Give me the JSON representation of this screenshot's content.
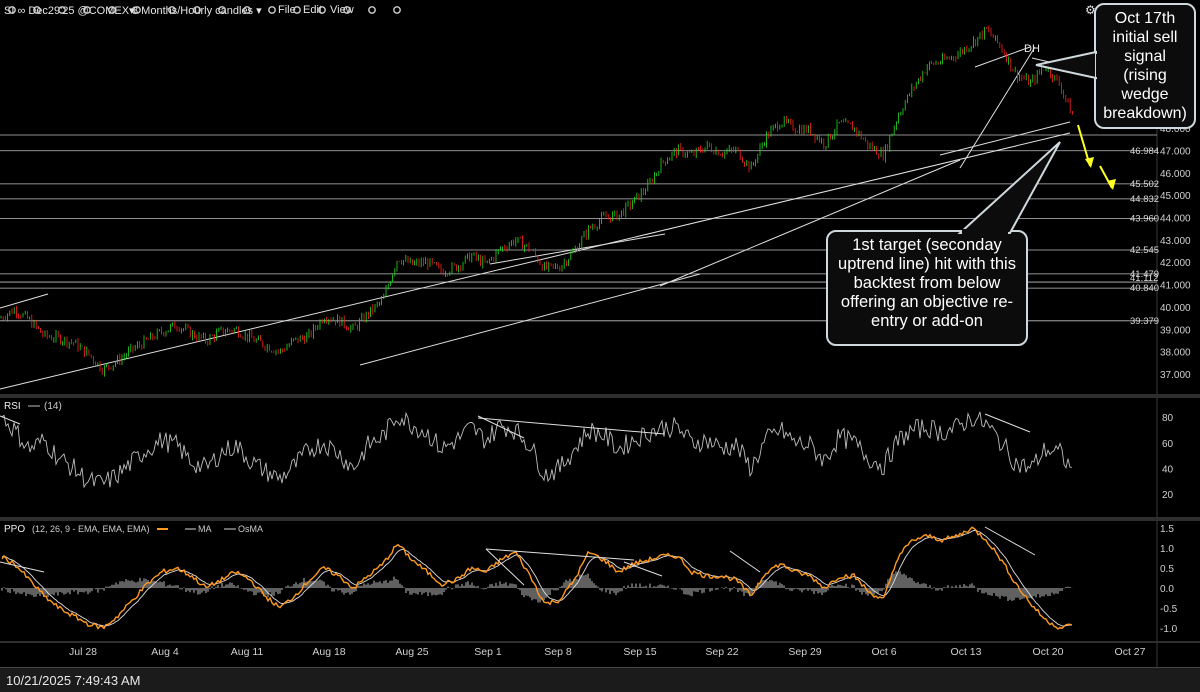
{
  "toolbar": {
    "symbol": "SI ∞ Dec29'25 @COMEX▾",
    "timeframe": "3 Months/Hourly candles ▾",
    "menu": [
      "File",
      "Edit",
      "View"
    ]
  },
  "status": {
    "datetime": "10/21/2025 7:49:43 AM"
  },
  "callouts": {
    "sell_signal": [
      "Oct 17th",
      "initial sell",
      "signal",
      "(rising",
      "wedge",
      "breakdown)"
    ],
    "target": [
      "1st target  (seconday",
      "uptrend line) hit with this",
      "backtest from below",
      "offering an objective re-",
      "entry or add-on"
    ]
  },
  "colors": {
    "up": "#22dd22",
    "down": "#ff2020",
    "rsi": "#bdbdbd",
    "ppo": "#ff9a1f",
    "ppo_ma": "#dddddd",
    "osma": "#6b6b6b",
    "arrow": "#ffff22"
  },
  "chart_data": [
    {
      "type": "candlestick",
      "title": "SI ∞ Dec29'25 @COMEX",
      "timeframe": "3 Months/Hourly candles",
      "x_tick_labels": [
        "Jul 28",
        "Aug 4",
        "Aug 11",
        "Aug 18",
        "Aug 25",
        "Sep 1",
        "Sep 8",
        "Sep 15",
        "Sep 22",
        "Sep 29",
        "Oct 6",
        "Oct 13",
        "Oct 20",
        "Oct 27"
      ],
      "y_axis_ticks": [
        37.0,
        38.0,
        39.0,
        40.0,
        41.0,
        42.0,
        43.0,
        44.0,
        45.0,
        46.0,
        47.0,
        48.0
      ],
      "y_tick_labels": [
        "37.000",
        "38.000",
        "39.000",
        "40.000",
        "41.000",
        "42.000",
        "43.000",
        "44.000",
        "45.000",
        "46.000",
        "47.000",
        "48.000"
      ],
      "horizontal_level_labels": [
        "46.984",
        "45.502",
        "44.832",
        "43.960",
        "42.545",
        "41.479",
        "41.112",
        "40.840",
        "39.379"
      ],
      "annotations": [
        "DH"
      ],
      "close_path": [
        [
          0,
          39.5
        ],
        [
          1,
          39.9
        ],
        [
          2,
          39.4
        ],
        [
          3,
          38.7
        ],
        [
          4,
          38.6
        ],
        [
          5,
          38.4
        ],
        [
          6,
          37.9
        ],
        [
          7,
          37.2
        ],
        [
          8,
          37.6
        ],
        [
          9,
          38.1
        ],
        [
          10,
          38.5
        ],
        [
          11,
          38.9
        ],
        [
          12,
          39.2
        ],
        [
          13,
          38.8
        ],
        [
          14,
          38.5
        ],
        [
          15,
          38.9
        ],
        [
          16,
          39.0
        ],
        [
          17,
          38.6
        ],
        [
          18,
          38.3
        ],
        [
          19,
          38.0
        ],
        [
          20,
          38.5
        ],
        [
          21,
          38.7
        ],
        [
          22,
          39.6
        ],
        [
          23,
          39.4
        ],
        [
          24,
          39.0
        ],
        [
          25,
          39.7
        ],
        [
          26,
          40.3
        ],
        [
          27,
          42.2
        ],
        [
          28,
          41.9
        ],
        [
          29,
          42.0
        ],
        [
          30,
          41.6
        ],
        [
          31,
          41.8
        ],
        [
          32,
          42.3
        ],
        [
          33,
          41.9
        ],
        [
          34,
          42.6
        ],
        [
          35,
          43.0
        ],
        [
          36,
          42.6
        ],
        [
          37,
          41.7
        ],
        [
          38,
          41.8
        ],
        [
          39,
          42.5
        ],
        [
          40,
          43.5
        ],
        [
          41,
          44.0
        ],
        [
          42,
          44.1
        ],
        [
          43,
          44.7
        ],
        [
          44,
          45.4
        ],
        [
          45,
          46.5
        ],
        [
          46,
          47.0
        ],
        [
          47,
          46.8
        ],
        [
          48,
          47.2
        ],
        [
          49,
          46.9
        ],
        [
          50,
          47.0
        ],
        [
          51,
          46.2
        ],
        [
          52,
          47.6
        ],
        [
          53,
          48.3
        ],
        [
          54,
          48.0
        ],
        [
          55,
          47.9
        ],
        [
          56,
          47.3
        ],
        [
          57,
          48.2
        ],
        [
          58,
          48.0
        ],
        [
          59,
          47.2
        ],
        [
          60,
          46.8
        ],
        [
          61,
          48.6
        ],
        [
          62,
          49.8
        ],
        [
          63,
          50.8
        ],
        [
          64,
          51.0
        ],
        [
          65,
          51.3
        ],
        [
          66,
          51.8
        ],
        [
          67,
          52.4
        ],
        [
          68,
          51.6
        ],
        [
          69,
          50.4
        ],
        [
          70,
          50.0
        ],
        [
          71,
          50.8
        ],
        [
          72,
          49.9
        ],
        [
          73,
          48.3
        ]
      ],
      "projected_path_arrows": "yellow arrows pointing down from last price"
    },
    {
      "type": "line",
      "title": "RSI",
      "legend": [
        "(14)"
      ],
      "y_tick_labels": [
        "20",
        "40",
        "60",
        "80"
      ],
      "ylim": [
        10,
        95
      ],
      "values": [
        82,
        70,
        55,
        62,
        48,
        40,
        30,
        28,
        35,
        45,
        55,
        62,
        58,
        45,
        40,
        52,
        58,
        46,
        38,
        32,
        42,
        55,
        60,
        52,
        40,
        58,
        65,
        82,
        74,
        68,
        55,
        62,
        72,
        62,
        74,
        70,
        58,
        35,
        40,
        55,
        70,
        66,
        55,
        62,
        68,
        72,
        72,
        60,
        62,
        56,
        58,
        40,
        62,
        70,
        60,
        58,
        46,
        65,
        60,
        48,
        42,
        62,
        70,
        72,
        68,
        72,
        80,
        74,
        60,
        44,
        40,
        55,
        52,
        35
      ]
    },
    {
      "type": "line",
      "title": "PPO",
      "legend": [
        "(12, 26, 9 - EMA, EMA, EMA)",
        "MA",
        "OsMA"
      ],
      "y_tick_labels": [
        "-1.0",
        "-0.5",
        "0.0",
        "0.5",
        "1.0",
        "1.5"
      ],
      "ylim": [
        -1.3,
        1.8
      ],
      "values": [
        0.8,
        0.6,
        0.2,
        -0.2,
        -0.5,
        -0.7,
        -0.9,
        -1.0,
        -0.7,
        -0.3,
        0.1,
        0.4,
        0.5,
        0.3,
        0.0,
        0.2,
        0.4,
        0.2,
        -0.2,
        -0.5,
        -0.2,
        0.2,
        0.5,
        0.3,
        0.0,
        0.3,
        0.6,
        1.1,
        0.7,
        0.4,
        0.1,
        0.2,
        0.5,
        0.4,
        0.7,
        0.9,
        0.3,
        -0.4,
        -0.3,
        0.2,
        0.9,
        0.7,
        0.4,
        0.6,
        0.7,
        0.8,
        0.8,
        0.4,
        0.3,
        0.3,
        0.2,
        -0.2,
        0.4,
        0.6,
        0.4,
        0.3,
        0.0,
        0.3,
        0.3,
        -0.1,
        -0.3,
        0.8,
        1.2,
        1.3,
        1.2,
        1.3,
        1.5,
        1.2,
        0.7,
        0.1,
        -0.4,
        -0.8,
        -1.0,
        -0.9
      ]
    }
  ]
}
